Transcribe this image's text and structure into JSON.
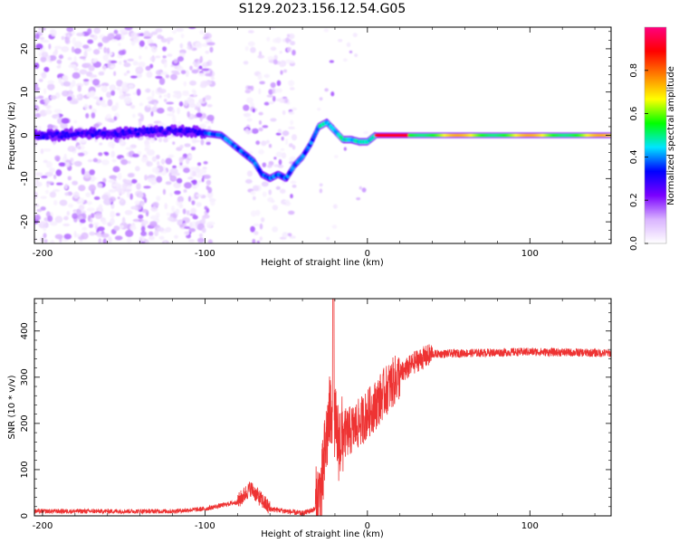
{
  "title": "S129.2023.156.12.54.G05",
  "chart_data": [
    {
      "type": "heatmap",
      "xlabel": "Height of straight line (km)",
      "ylabel": "Frequency (Hz)",
      "xlim": [
        -205,
        150
      ],
      "ylim": [
        -25,
        25
      ],
      "x_ticks": [
        -200,
        -100,
        0,
        100
      ],
      "y_ticks": [
        -20,
        -10,
        0,
        10,
        20
      ],
      "colorbar": {
        "label": "Normalized spectral amplitude",
        "range": [
          0,
          1
        ],
        "ticks": [
          "0.0",
          "0.2",
          "0.4",
          "0.6",
          "0.8"
        ],
        "colormap": [
          "#ffffff",
          "#d9b3ff",
          "#7a00ff",
          "#0000ff",
          "#00e5ff",
          "#00ff00",
          "#ffff00",
          "#ff8000",
          "#ff0000",
          "#ff007f"
        ]
      },
      "ridge": {
        "x": [
          -205,
          -190,
          -170,
          -150,
          -130,
          -110,
          -100,
          -90,
          -80,
          -70,
          -65,
          -60,
          -55,
          -50,
          -45,
          -40,
          -35,
          -30,
          -25,
          -20,
          -15,
          -10,
          -5,
          0,
          5,
          20,
          50,
          100,
          150
        ],
        "frequency": [
          0,
          0,
          0.5,
          0.5,
          1,
          1,
          0.5,
          0,
          -3,
          -6,
          -9,
          -10,
          -9,
          -10,
          -7,
          -5,
          -2,
          2,
          3,
          1,
          -1,
          -1,
          -1.5,
          -1.5,
          0,
          0,
          0,
          0,
          0
        ]
      }
    },
    {
      "type": "line",
      "xlabel": "Height of straight line (km)",
      "ylabel": "SNR (10 * v/v)",
      "xlim": [
        -205,
        150
      ],
      "ylim": [
        0,
        470
      ],
      "x_ticks": [
        -200,
        -100,
        0,
        100
      ],
      "y_ticks": [
        0,
        100,
        200,
        300,
        400
      ],
      "line_color": "#ee3333",
      "envelope": {
        "x": [
          -205,
          -120,
          -100,
          -80,
          -72,
          -68,
          -60,
          -40,
          -32,
          -28,
          -26,
          -24,
          -22,
          -20,
          -18,
          -15,
          -10,
          -5,
          0,
          5,
          10,
          15,
          20,
          25,
          30,
          40,
          60,
          100,
          150
        ],
        "snr": [
          10,
          10,
          15,
          30,
          60,
          45,
          15,
          5,
          15,
          60,
          140,
          200,
          240,
          200,
          160,
          175,
          185,
          200,
          220,
          240,
          265,
          285,
          305,
          320,
          335,
          350,
          352,
          355,
          352
        ]
      },
      "spike": {
        "x": -21,
        "snr": 470
      }
    }
  ]
}
